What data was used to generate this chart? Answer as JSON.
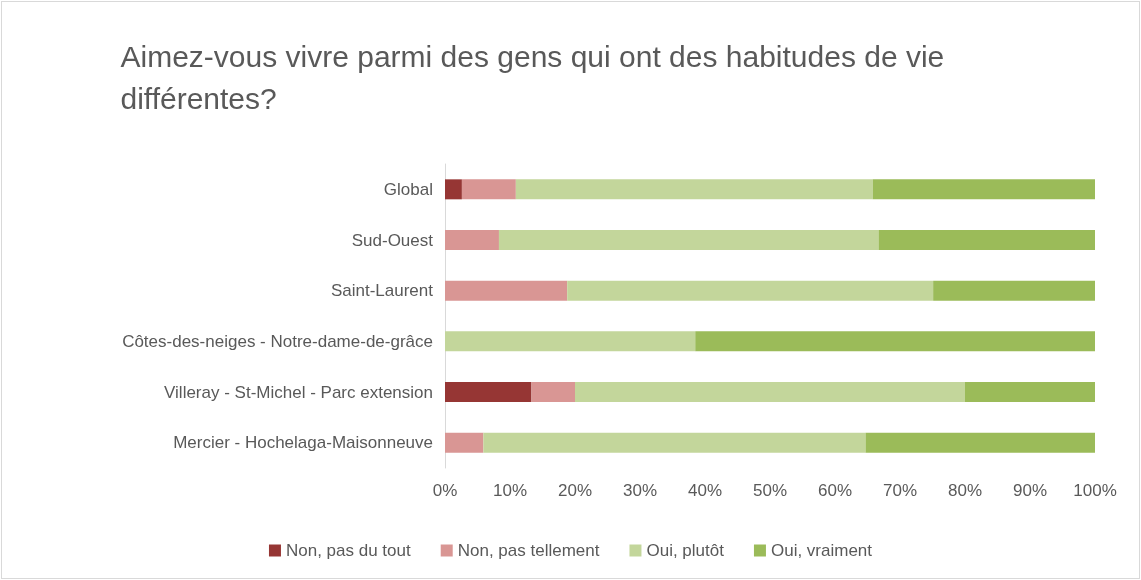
{
  "chart_data": {
    "type": "bar",
    "orientation": "horizontal",
    "stacked": true,
    "title": "Aimez-vous vivre parmi des gens qui ont des habitudes de vie différentes?",
    "categories": [
      "Global",
      "Sud-Ouest",
      "Saint-Laurent",
      "Côtes-des-neiges - Notre-dame-de-grâce",
      "Villeray - St-Michel - Parc extension",
      "Mercier - Hochelaga-Maisonneuve"
    ],
    "series": [
      {
        "name": "Non, pas du tout",
        "color": "#963634",
        "values": [
          2.6,
          0,
          0,
          0,
          13.3,
          0
        ]
      },
      {
        "name": "Non, pas tellement",
        "color": "#d99694",
        "values": [
          8.3,
          8.3,
          18.8,
          0,
          6.7,
          5.9
        ]
      },
      {
        "name": "Oui, plutôt",
        "color": "#c3d69b",
        "values": [
          54.9,
          58.4,
          56.3,
          38.5,
          60,
          58.8
        ]
      },
      {
        "name": "Oui, vraiment",
        "color": "#9bbb59",
        "values": [
          34.2,
          33.3,
          24.9,
          61.5,
          20,
          35.3
        ]
      }
    ],
    "xlim": [
      0,
      100
    ],
    "xticks": [
      {
        "value": 0,
        "label": "0%"
      },
      {
        "value": 10,
        "label": "10%"
      },
      {
        "value": 20,
        "label": "20%"
      },
      {
        "value": 30,
        "label": "30%"
      },
      {
        "value": 40,
        "label": "40%"
      },
      {
        "value": 50,
        "label": "50%"
      },
      {
        "value": 60,
        "label": "60%"
      },
      {
        "value": 70,
        "label": "70%"
      },
      {
        "value": 80,
        "label": "80%"
      },
      {
        "value": 90,
        "label": "90%"
      },
      {
        "value": 100,
        "label": "100%"
      }
    ],
    "legend": "bottom",
    "grid": false
  }
}
